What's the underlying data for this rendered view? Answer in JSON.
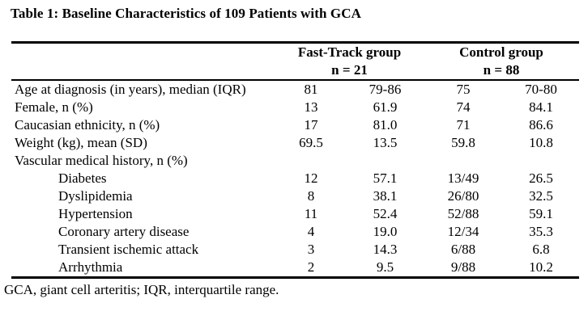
{
  "title": "Table 1: Baseline Characteristics of 109 Patients with GCA",
  "table": {
    "column_groups": [
      {
        "label": "Fast-Track group",
        "n_label": "n = 21"
      },
      {
        "label": "Control group",
        "n_label": "n = 88"
      }
    ],
    "rows": [
      {
        "label": "Age at diagnosis (in years), median (IQR)",
        "indent": false,
        "values": [
          "81",
          "79-86",
          "75",
          "70-80"
        ]
      },
      {
        "label": "Female, n (%)",
        "indent": false,
        "values": [
          "13",
          "61.9",
          "74",
          "84.1"
        ]
      },
      {
        "label": "Caucasian ethnicity, n (%)",
        "indent": false,
        "values": [
          "17",
          "81.0",
          "71",
          "86.6"
        ]
      },
      {
        "label": "Weight (kg), mean (SD)",
        "indent": false,
        "values": [
          "69.5",
          "13.5",
          "59.8",
          "10.8"
        ]
      },
      {
        "label": "Vascular medical history, n (%)",
        "indent": false,
        "values": [
          "",
          "",
          "",
          ""
        ]
      },
      {
        "label": "Diabetes",
        "indent": true,
        "values": [
          "12",
          "57.1",
          "13/49",
          "26.5"
        ]
      },
      {
        "label": "Dyslipidemia",
        "indent": true,
        "values": [
          "8",
          "38.1",
          "26/80",
          "32.5"
        ]
      },
      {
        "label": "Hypertension",
        "indent": true,
        "values": [
          "11",
          "52.4",
          "52/88",
          "59.1"
        ]
      },
      {
        "label": "Coronary artery disease",
        "indent": true,
        "values": [
          "4",
          "19.0",
          "12/34",
          "35.3"
        ]
      },
      {
        "label": "Transient ischemic attack",
        "indent": true,
        "values": [
          "3",
          "14.3",
          "6/88",
          "6.8"
        ]
      },
      {
        "label": "Arrhythmia",
        "indent": true,
        "values": [
          "2",
          "9.5",
          "9/88",
          "10.2"
        ]
      }
    ]
  },
  "footnote": "GCA, giant cell arteritis; IQR, interquartile range."
}
